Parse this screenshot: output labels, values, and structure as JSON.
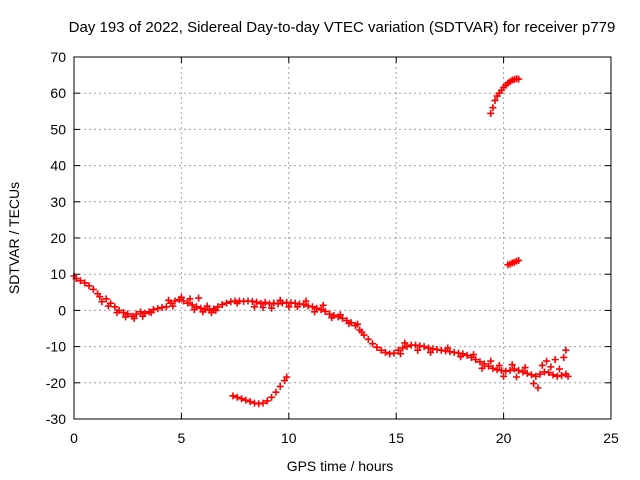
{
  "chart_data": {
    "type": "scatter",
    "title": "Day 193 of 2022, Sidereal Day-to-day VTEC variation (SDTVAR) for receiver p779",
    "xlabel": "GPS time / hours",
    "ylabel": "SDTVAR / TECUs",
    "xlim": [
      0,
      25
    ],
    "ylim": [
      -30,
      70
    ],
    "xticks": [
      "0",
      "5",
      "10",
      "15",
      "20",
      "25"
    ],
    "yticks": [
      "-30",
      "-20",
      "-10",
      "0",
      "10",
      "20",
      "30",
      "40",
      "50",
      "60",
      "70"
    ],
    "grid": true,
    "marker": "plus",
    "colors": {
      "series": "#ff0000",
      "grid": "#a0a0a0",
      "axis": "#000000"
    },
    "series": [
      {
        "name": "main-track",
        "points": [
          [
            0.0,
            9.5
          ],
          [
            0.1,
            8.8
          ],
          [
            0.3,
            8.2
          ],
          [
            0.5,
            7.6
          ],
          [
            0.7,
            6.8
          ],
          [
            0.9,
            5.8
          ],
          [
            1.1,
            4.6
          ],
          [
            1.2,
            3.8
          ],
          [
            1.5,
            3.2
          ],
          [
            1.7,
            2.0
          ],
          [
            1.9,
            1.0
          ],
          [
            2.1,
            0.0
          ],
          [
            2.3,
            -0.6
          ],
          [
            2.5,
            -1.0
          ],
          [
            2.7,
            -1.6
          ],
          [
            2.9,
            -1.0
          ],
          [
            3.1,
            -0.4
          ],
          [
            3.3,
            -0.8
          ],
          [
            3.5,
            -0.4
          ],
          [
            3.7,
            0.2
          ],
          [
            3.9,
            0.5
          ],
          [
            4.1,
            0.8
          ],
          [
            4.3,
            1.0
          ],
          [
            4.5,
            2.0
          ],
          [
            4.7,
            2.6
          ],
          [
            4.9,
            3.0
          ],
          [
            5.1,
            2.6
          ],
          [
            5.3,
            2.0
          ],
          [
            5.5,
            1.5
          ],
          [
            5.7,
            1.0
          ],
          [
            5.9,
            0.6
          ],
          [
            6.1,
            0.3
          ],
          [
            6.3,
            0.1
          ],
          [
            6.5,
            0.4
          ],
          [
            6.7,
            1.0
          ],
          [
            6.9,
            1.6
          ],
          [
            7.1,
            2.0
          ],
          [
            7.3,
            2.4
          ],
          [
            7.5,
            2.6
          ],
          [
            7.7,
            2.6
          ],
          [
            7.9,
            2.5
          ],
          [
            8.1,
            2.6
          ],
          [
            8.3,
            2.5
          ],
          [
            8.5,
            2.3
          ],
          [
            8.7,
            1.9
          ],
          [
            8.9,
            2.2
          ],
          [
            9.1,
            1.8
          ],
          [
            9.3,
            2.0
          ],
          [
            9.5,
            1.8
          ],
          [
            9.7,
            2.0
          ],
          [
            9.9,
            2.2
          ],
          [
            10.1,
            2.1
          ],
          [
            10.3,
            2.0
          ],
          [
            10.5,
            1.8
          ],
          [
            10.7,
            1.6
          ],
          [
            10.9,
            1.2
          ],
          [
            11.1,
            1.0
          ],
          [
            11.3,
            0.6
          ],
          [
            11.5,
            0.2
          ],
          [
            11.7,
            -0.3
          ],
          [
            11.9,
            -1.0
          ],
          [
            12.1,
            -1.4
          ],
          [
            12.3,
            -1.8
          ],
          [
            12.5,
            -2.2
          ],
          [
            12.7,
            -2.8
          ],
          [
            12.9,
            -3.4
          ],
          [
            13.1,
            -4.2
          ],
          [
            13.3,
            -5.4
          ],
          [
            13.5,
            -6.8
          ],
          [
            13.7,
            -8.0
          ],
          [
            13.9,
            -9.2
          ],
          [
            14.1,
            -10.2
          ],
          [
            14.3,
            -11.0
          ],
          [
            14.5,
            -11.6
          ],
          [
            14.7,
            -12.0
          ],
          [
            14.9,
            -11.8
          ],
          [
            15.1,
            -11.0
          ],
          [
            15.3,
            -10.4
          ],
          [
            15.5,
            -10.0
          ],
          [
            15.7,
            -9.6
          ],
          [
            15.9,
            -9.6
          ],
          [
            16.1,
            -9.8
          ],
          [
            16.3,
            -10.0
          ],
          [
            16.5,
            -10.4
          ],
          [
            16.7,
            -10.6
          ],
          [
            16.9,
            -10.8
          ],
          [
            17.1,
            -11.0
          ],
          [
            17.3,
            -11.2
          ],
          [
            17.5,
            -11.4
          ],
          [
            17.7,
            -11.6
          ],
          [
            17.9,
            -11.8
          ],
          [
            18.1,
            -12.0
          ],
          [
            18.3,
            -12.4
          ],
          [
            18.5,
            -13.0
          ],
          [
            18.7,
            -13.6
          ],
          [
            18.9,
            -14.2
          ],
          [
            19.1,
            -14.8
          ],
          [
            19.3,
            -15.4
          ],
          [
            19.5,
            -16.0
          ],
          [
            19.7,
            -16.4
          ],
          [
            19.9,
            -16.6
          ],
          [
            20.1,
            -16.8
          ],
          [
            20.3,
            -16.6
          ],
          [
            20.5,
            -16.2
          ],
          [
            20.7,
            -16.6
          ],
          [
            20.9,
            -17.0
          ],
          [
            21.1,
            -17.4
          ],
          [
            21.3,
            -17.8
          ],
          [
            21.5,
            -18.2
          ],
          [
            21.7,
            -17.6
          ],
          [
            21.9,
            -17.0
          ],
          [
            22.1,
            -17.2
          ],
          [
            22.3,
            -17.8
          ],
          [
            22.5,
            -18.2
          ],
          [
            22.7,
            -18.0
          ],
          [
            22.9,
            -17.6
          ]
        ]
      },
      {
        "name": "main-track-spread",
        "points": [
          [
            1.3,
            2.4
          ],
          [
            1.6,
            1.2
          ],
          [
            2.0,
            -0.6
          ],
          [
            2.4,
            -1.8
          ],
          [
            2.8,
            -2.2
          ],
          [
            3.2,
            -1.6
          ],
          [
            3.6,
            -0.6
          ],
          [
            4.4,
            2.8
          ],
          [
            4.6,
            1.2
          ],
          [
            5.0,
            3.6
          ],
          [
            5.4,
            3.2
          ],
          [
            5.6,
            0.2
          ],
          [
            5.8,
            3.4
          ],
          [
            6.0,
            -0.4
          ],
          [
            6.2,
            1.2
          ],
          [
            6.4,
            -0.6
          ],
          [
            6.6,
            0.0
          ],
          [
            7.6,
            2.0
          ],
          [
            8.4,
            1.0
          ],
          [
            8.8,
            0.8
          ],
          [
            9.2,
            0.6
          ],
          [
            9.6,
            2.8
          ],
          [
            10.0,
            1.0
          ],
          [
            10.4,
            1.0
          ],
          [
            10.8,
            2.6
          ],
          [
            11.2,
            -0.4
          ],
          [
            11.6,
            1.4
          ],
          [
            12.0,
            -2.0
          ],
          [
            12.4,
            -1.2
          ],
          [
            12.8,
            -3.6
          ],
          [
            13.2,
            -3.8
          ],
          [
            13.4,
            -6.0
          ],
          [
            15.2,
            -12.0
          ],
          [
            15.4,
            -9.0
          ],
          [
            16.0,
            -11.0
          ],
          [
            16.6,
            -11.6
          ],
          [
            17.4,
            -10.4
          ],
          [
            18.0,
            -12.8
          ],
          [
            18.6,
            -12.2
          ],
          [
            19.0,
            -16.0
          ],
          [
            19.4,
            -14.0
          ],
          [
            19.8,
            -15.2
          ],
          [
            20.0,
            -18.2
          ],
          [
            20.4,
            -15.0
          ],
          [
            20.6,
            -18.4
          ],
          [
            21.0,
            -15.8
          ],
          [
            21.4,
            -20.2
          ],
          [
            21.6,
            -21.4
          ],
          [
            21.8,
            -15.2
          ],
          [
            22.0,
            -14.0
          ],
          [
            22.2,
            -15.6
          ],
          [
            22.4,
            -13.6
          ],
          [
            22.6,
            -16.2
          ],
          [
            22.8,
            -13.0
          ],
          [
            22.9,
            -11.0
          ],
          [
            23.0,
            -18.2
          ]
        ]
      },
      {
        "name": "arc-low",
        "points": [
          [
            7.4,
            -23.6
          ],
          [
            7.6,
            -24.0
          ],
          [
            7.8,
            -24.4
          ],
          [
            8.0,
            -24.8
          ],
          [
            8.2,
            -25.2
          ],
          [
            8.4,
            -25.6
          ],
          [
            8.6,
            -25.8
          ],
          [
            8.8,
            -25.6
          ],
          [
            9.0,
            -25.0
          ],
          [
            9.2,
            -24.0
          ],
          [
            9.4,
            -22.6
          ],
          [
            9.6,
            -21.0
          ],
          [
            9.8,
            -19.4
          ],
          [
            9.9,
            -18.4
          ]
        ]
      },
      {
        "name": "arc-high",
        "points": [
          [
            19.4,
            54.4
          ],
          [
            19.5,
            56.0
          ],
          [
            19.6,
            58.0
          ],
          [
            19.7,
            59.2
          ],
          [
            19.8,
            60.0
          ],
          [
            19.9,
            60.8
          ],
          [
            20.0,
            61.6
          ],
          [
            20.1,
            62.2
          ],
          [
            20.2,
            62.8
          ],
          [
            20.3,
            63.2
          ],
          [
            20.4,
            63.6
          ],
          [
            20.5,
            63.8
          ],
          [
            20.6,
            64.0
          ],
          [
            20.7,
            63.9
          ]
        ]
      },
      {
        "name": "short-segment",
        "points": [
          [
            20.2,
            12.6
          ],
          [
            20.3,
            12.8
          ],
          [
            20.4,
            13.1
          ],
          [
            20.5,
            13.3
          ],
          [
            20.6,
            13.6
          ],
          [
            20.7,
            13.8
          ]
        ]
      }
    ]
  }
}
